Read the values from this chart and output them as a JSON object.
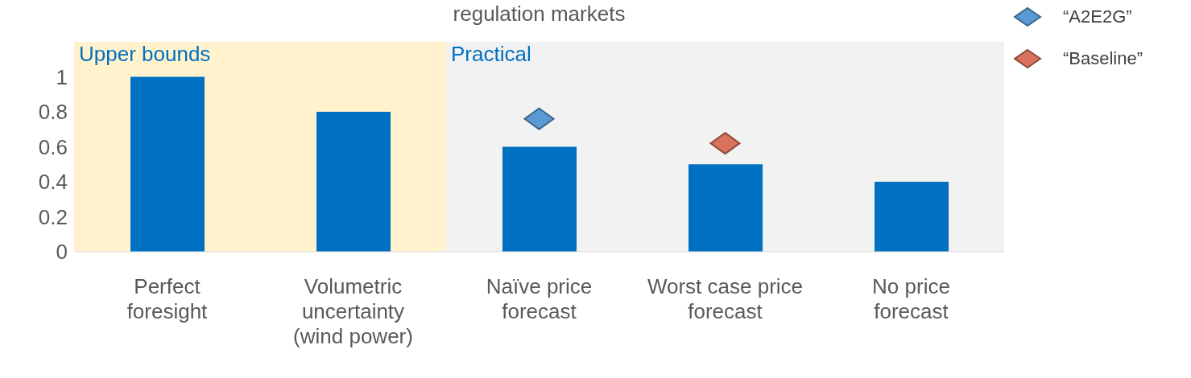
{
  "chart_data": {
    "type": "bar",
    "title": "regulation markets",
    "categories": [
      "Perfect foresight",
      "Volumetric uncertainty (wind power)",
      "Naïve price forecast",
      "Worst case price forecast",
      "No price forecast"
    ],
    "series": [
      {
        "color": "#0070c0",
        "values": [
          1,
          0.8,
          0.6,
          0.5,
          0.4
        ]
      },
      {
        "type": "scatter",
        "name": "“A2E2G”",
        "color": "#5b9bd5",
        "values": [
          null,
          null,
          0.76,
          null,
          null
        ]
      },
      {
        "type": "scatter",
        "name": "“Baseline”",
        "color": "#d9735e",
        "values": [
          null,
          null,
          null,
          0.62,
          null
        ]
      }
    ],
    "ylim": [
      0,
      1.2
    ],
    "yticks": [
      0,
      0.2,
      0.4,
      0.6,
      0.8,
      1
    ],
    "bands": [
      {
        "axis": "x",
        "from": "Perfect foresight",
        "to": "Volumetric uncertainty (wind power)",
        "label": "Upper bounds",
        "color": "#fff2cc"
      },
      {
        "axis": "x",
        "from": "Naïve price forecast",
        "to": "No price forecast",
        "label": "Practical",
        "color": "#f2f2f2"
      }
    ],
    "marker": "diamond",
    "legend": "top right"
  }
}
